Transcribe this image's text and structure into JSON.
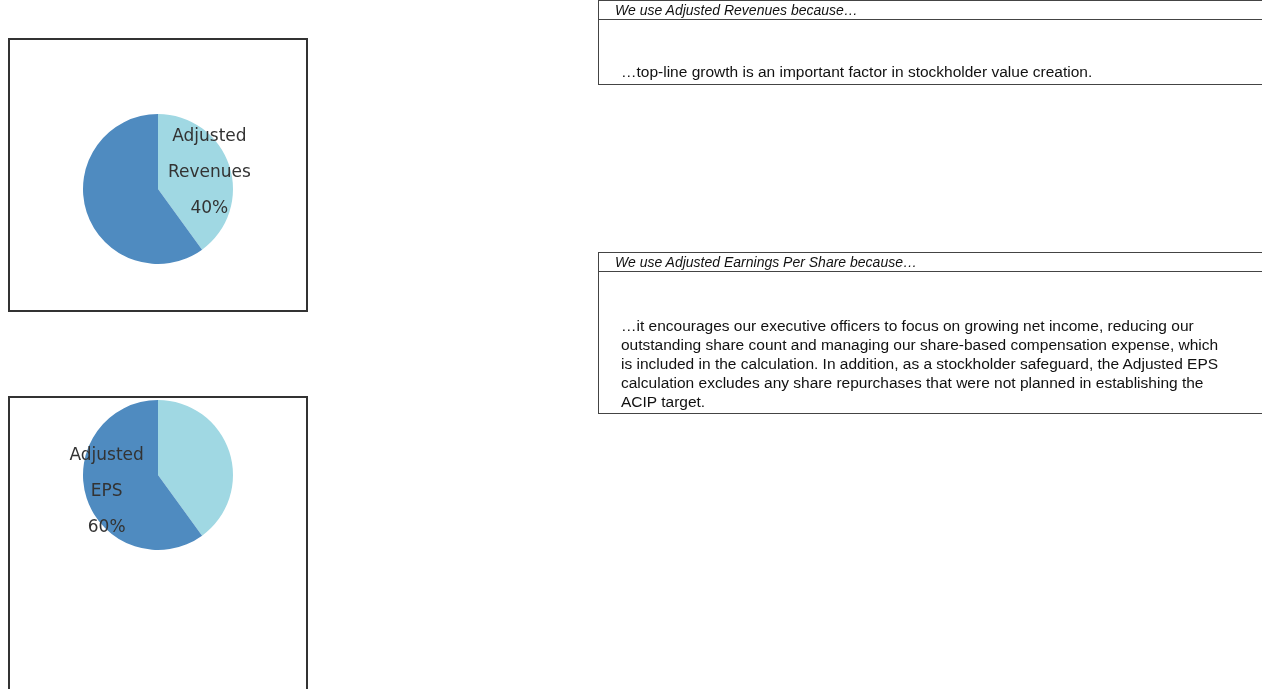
{
  "chart_data": [
    {
      "type": "pie",
      "categories": [
        "Adjusted Revenues",
        null
      ],
      "values": [
        40,
        60
      ],
      "colors": [
        "#a0d8e3",
        "#4f8bc0"
      ],
      "value_labels": [
        "40%",
        null
      ]
    },
    {
      "type": "other",
      "title": "We use Adjusted Revenues because…",
      "annotations": [
        "…top-line growth is an important factor in stockholder value creation."
      ]
    },
    {
      "type": "pie",
      "categories": [
        null,
        "Adjusted EPS"
      ],
      "values": [
        40,
        60
      ],
      "colors": [
        "#a0d8e3",
        "#4f8bc0"
      ],
      "value_labels": [
        null,
        "60%"
      ]
    },
    {
      "type": "other",
      "title": "We use Adjusted Earnings Per Share because…",
      "annotations": [
        "…it encourages our executive officers to focus on growing net income, reducing our outstanding share count and managing our share-based compensation expense, which is included in the calculation. In addition, as a stockholder safeguard, the Adjusted EPS calculation excludes any share repurchases that were not planned in establishing the ACIP target."
      ]
    }
  ]
}
